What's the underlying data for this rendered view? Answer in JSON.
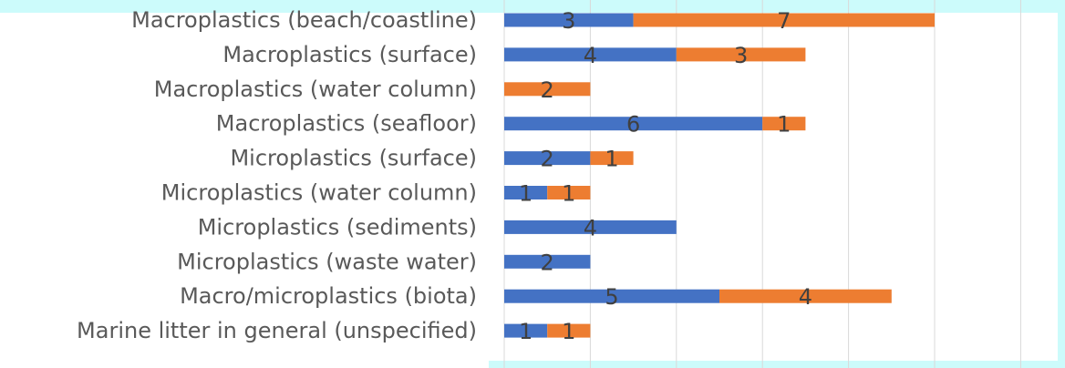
{
  "chart_data": {
    "type": "bar",
    "orientation": "horizontal",
    "stacked": true,
    "categories": [
      "Macroplastics (beach/coastline)",
      "Macroplastics (surface)",
      "Macroplastics (water column)",
      "Macroplastics (seafloor)",
      "Microplastics (surface)",
      "Microplastics (water column)",
      "Microplastics (sediments)",
      "Microplastics (waste water)",
      "Macro/microplastics (biota)",
      "Marine litter in general (unspecified)"
    ],
    "series": [
      {
        "values": [
          3,
          4,
          0,
          6,
          2,
          1,
          4,
          2,
          5,
          1
        ],
        "color": "#4472c4"
      },
      {
        "values": [
          7,
          3,
          2,
          1,
          1,
          1,
          0,
          0,
          4,
          1
        ],
        "color": "#ed7d31"
      }
    ],
    "xlim": [
      0,
      13
    ],
    "grid": true
  }
}
